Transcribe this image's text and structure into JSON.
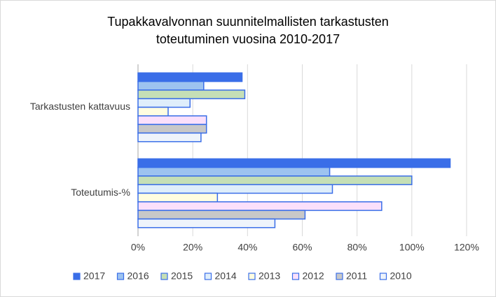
{
  "chart_data": {
    "type": "bar",
    "orientation": "horizontal",
    "title": [
      "Tupakkavalvonnan suunnitelmallisten tarkastusten",
      "toteutuminen vuosina 2010-2017"
    ],
    "categories": [
      "Tarkastusten kattavuus",
      "Toteutumis-%"
    ],
    "series": [
      {
        "name": "2017",
        "color": "#3a6ee8",
        "values": [
          38,
          114
        ]
      },
      {
        "name": "2016",
        "color": "#9dc3f0",
        "values": [
          24,
          70
        ]
      },
      {
        "name": "2015",
        "color": "#c5dfb6",
        "values": [
          39,
          100
        ]
      },
      {
        "name": "2014",
        "color": "#dfeefb",
        "values": [
          19,
          71
        ]
      },
      {
        "name": "2013",
        "color": "#fffde0",
        "values": [
          11,
          29
        ]
      },
      {
        "name": "2012",
        "color": "#fbe0fb",
        "values": [
          25,
          89
        ]
      },
      {
        "name": "2011",
        "color": "#c8c8c8",
        "values": [
          25,
          61
        ]
      },
      {
        "name": "2010",
        "color": "#eef4fb",
        "values": [
          23,
          50
        ]
      }
    ],
    "xlim": [
      0,
      120
    ],
    "xticks": [
      {
        "value": 0,
        "label": "0%"
      },
      {
        "value": 20,
        "label": "20%"
      },
      {
        "value": 40,
        "label": "40%"
      },
      {
        "value": 60,
        "label": "60%"
      },
      {
        "value": 80,
        "label": "80%"
      },
      {
        "value": 100,
        "label": "100%"
      },
      {
        "value": 120,
        "label": "120%"
      }
    ],
    "grid": true,
    "legend": "bottom",
    "bar_edge_color": "#3a6ee8"
  }
}
